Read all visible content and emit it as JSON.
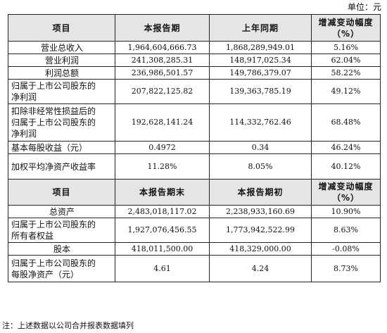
{
  "unit_label": "单位：元",
  "header1": {
    "item": "项目",
    "current": "本报告期",
    "previous": "上年同期",
    "change_line1": "增减变动幅度",
    "change_line2": "（%）"
  },
  "section1_rows": [
    {
      "item": "营业总收入",
      "current": "1,964,604,666.73",
      "previous": "1,868,289,949.01",
      "change": "5.16%"
    },
    {
      "item": "营业利润",
      "current": "241,308,285.31",
      "previous": "148,917,025.34",
      "change": "62.04%"
    },
    {
      "item": "利润总额",
      "current": "236,986,501.57",
      "previous": "149,786,379.07",
      "change": "58.22%"
    },
    {
      "item_line1": "归属于上市公司股东的",
      "item_line2": "净利润",
      "current": "207,822,125.82",
      "previous": "139,363,785.19",
      "change": "49.12%"
    },
    {
      "item_line1": "扣除非经常性损益后的",
      "item_line2": "归属于上市公司股东的",
      "item_line3": "净利润",
      "current": "192,628,141.24",
      "previous": "114,332,762.46",
      "change": "68.48%"
    },
    {
      "item": "基本每股收益（元）",
      "current": "0.4972",
      "previous": "0.34",
      "change": "46.24%"
    },
    {
      "item": "加权平均净资产收益率",
      "current": "11.28%",
      "previous": "8.05%",
      "change": "40.12%"
    }
  ],
  "header2": {
    "item": "项目",
    "current": "本报告期末",
    "previous": "本报告期初",
    "change_line1": "增减变动幅度",
    "change_line2": "（%）"
  },
  "section2_rows": [
    {
      "item": "总资产",
      "current": "2,483,018,117.02",
      "previous": "2,238,933,160.69",
      "change": "10.90%"
    },
    {
      "item_line1": "归属于上市公司股东的",
      "item_line2": "所有者权益",
      "current": "1,927,076,456.55",
      "previous": "1,773,942,522.99",
      "change": "8.63%"
    },
    {
      "item": "股本",
      "current": "418,011,500.00",
      "previous": "418,329,000.00",
      "change": "-0.08%"
    },
    {
      "item_line1": "归属于上市公司股东的",
      "item_line2": "每股净资产（元）",
      "current": "4.61",
      "previous": "4.24",
      "change": "8.73%"
    }
  ],
  "footnote": "注：上述数据以公司合并报表数据填列"
}
